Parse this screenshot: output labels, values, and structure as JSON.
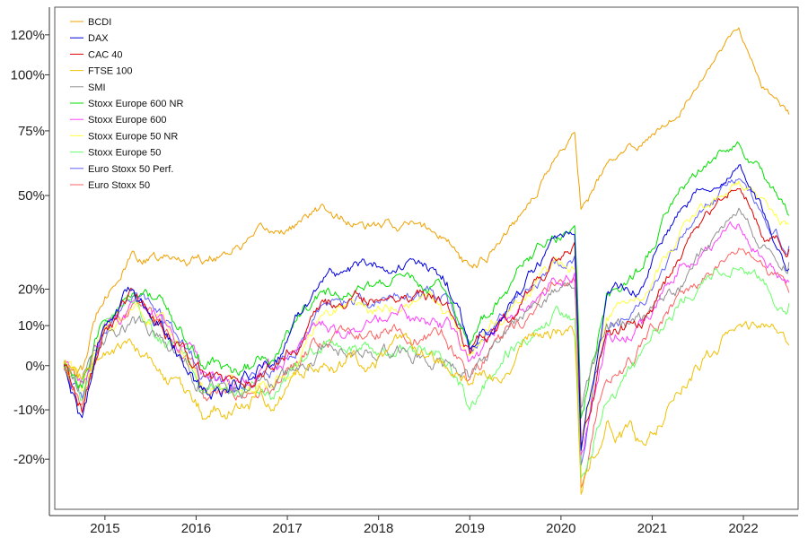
{
  "chart_data": {
    "type": "line",
    "title": "",
    "xlabel": "",
    "ylabel": "",
    "y_scale": "log(1+r)",
    "grid": false,
    "legend_position": "top-left",
    "xlim": [
      2014.45,
      2022.6
    ],
    "ylim": [
      -0.29,
      1.35
    ],
    "x_ticks": [
      {
        "value": 2015,
        "label": "2015"
      },
      {
        "value": 2016,
        "label": "2016"
      },
      {
        "value": 2017,
        "label": "2017"
      },
      {
        "value": 2018,
        "label": "2018"
      },
      {
        "value": 2019,
        "label": "2019"
      },
      {
        "value": 2020,
        "label": "2020"
      },
      {
        "value": 2021,
        "label": "2021"
      },
      {
        "value": 2022,
        "label": "2022"
      }
    ],
    "y_ticks": [
      {
        "value": -0.2,
        "label": "-20%"
      },
      {
        "value": -0.1,
        "label": "-10%"
      },
      {
        "value": 0.0,
        "label": "0%"
      },
      {
        "value": 0.1,
        "label": "10%"
      },
      {
        "value": 0.2,
        "label": "20%"
      },
      {
        "value": 0.5,
        "label": "50%"
      },
      {
        "value": 0.75,
        "label": "75%"
      },
      {
        "value": 1.0,
        "label": "100%"
      },
      {
        "value": 1.2,
        "label": "120%"
      }
    ],
    "x": [
      2014.55,
      2014.75,
      2015.0,
      2015.3,
      2015.6,
      2016.1,
      2016.5,
      2016.9,
      2017.4,
      2017.9,
      2018.3,
      2018.75,
      2019.0,
      2019.5,
      2019.9,
      2020.15,
      2020.22,
      2020.5,
      2020.9,
      2021.3,
      2021.6,
      2021.95,
      2022.2,
      2022.5
    ],
    "series": [
      {
        "name": "BCDI",
        "color": "#f0a000",
        "values": [
          0.0,
          -0.02,
          0.2,
          0.3,
          0.28,
          0.3,
          0.34,
          0.37,
          0.45,
          0.38,
          0.4,
          0.36,
          0.25,
          0.42,
          0.62,
          0.75,
          0.45,
          0.6,
          0.7,
          0.85,
          1.05,
          1.25,
          0.95,
          0.82
        ]
      },
      {
        "name": "DAX",
        "color": "#0000dd",
        "values": [
          0.0,
          -0.12,
          0.12,
          0.19,
          0.12,
          -0.07,
          -0.03,
          0.03,
          0.24,
          0.27,
          0.28,
          0.22,
          0.05,
          0.18,
          0.32,
          0.33,
          -0.22,
          0.18,
          0.21,
          0.45,
          0.55,
          0.62,
          0.45,
          0.26
        ]
      },
      {
        "name": "CAC 40",
        "color": "#e00000",
        "values": [
          0.0,
          -0.08,
          0.08,
          0.17,
          0.11,
          -0.04,
          -0.05,
          0.0,
          0.14,
          0.17,
          0.2,
          0.16,
          0.04,
          0.15,
          0.28,
          0.32,
          -0.18,
          0.07,
          0.1,
          0.3,
          0.42,
          0.55,
          0.4,
          0.32
        ]
      },
      {
        "name": "FTSE 100",
        "color": "#f0c000",
        "values": [
          0.0,
          -0.03,
          0.03,
          0.05,
          -0.02,
          -0.12,
          -0.08,
          -0.07,
          0.02,
          0.02,
          0.04,
          0.01,
          -0.06,
          0.04,
          0.08,
          0.07,
          -0.26,
          -0.12,
          -0.18,
          -0.02,
          0.03,
          0.1,
          0.08,
          0.05
        ]
      },
      {
        "name": "SMI",
        "color": "#909090",
        "values": [
          0.0,
          -0.04,
          0.05,
          0.1,
          0.06,
          -0.04,
          -0.05,
          -0.07,
          0.05,
          0.02,
          0.03,
          0.02,
          -0.02,
          0.12,
          0.2,
          0.22,
          -0.1,
          0.08,
          0.12,
          0.2,
          0.32,
          0.45,
          0.32,
          0.28
        ]
      },
      {
        "name": "Stoxx Europe 600 NR",
        "color": "#00e000",
        "values": [
          0.0,
          -0.06,
          0.12,
          0.19,
          0.15,
          0.0,
          -0.02,
          0.03,
          0.18,
          0.2,
          0.23,
          0.2,
          0.07,
          0.25,
          0.35,
          0.38,
          -0.13,
          0.19,
          0.27,
          0.5,
          0.62,
          0.7,
          0.58,
          0.43
        ]
      },
      {
        "name": "Stoxx Europe 600",
        "color": "#ff40ff",
        "values": [
          0.0,
          -0.07,
          0.09,
          0.15,
          0.11,
          -0.03,
          -0.05,
          -0.03,
          0.09,
          0.1,
          0.12,
          0.09,
          -0.02,
          0.12,
          0.21,
          0.24,
          -0.2,
          0.04,
          0.1,
          0.26,
          0.33,
          0.4,
          0.3,
          0.22
        ]
      },
      {
        "name": "Stoxx Europe 50 NR",
        "color": "#ffff40",
        "values": [
          0.0,
          -0.06,
          0.09,
          0.16,
          0.11,
          -0.02,
          -0.04,
          -0.02,
          0.12,
          0.14,
          0.17,
          0.14,
          0.02,
          0.17,
          0.26,
          0.28,
          -0.16,
          0.12,
          0.18,
          0.36,
          0.45,
          0.55,
          0.48,
          0.4
        ]
      },
      {
        "name": "Stoxx Europe 50",
        "color": "#66ff66",
        "values": [
          0.0,
          -0.07,
          0.07,
          0.13,
          0.08,
          -0.05,
          -0.06,
          -0.05,
          0.04,
          0.05,
          0.06,
          0.03,
          -0.08,
          0.05,
          0.12,
          0.13,
          -0.25,
          -0.04,
          0.0,
          0.16,
          0.23,
          0.3,
          0.22,
          0.16
        ]
      },
      {
        "name": "Euro Stoxx 50 Perf.",
        "color": "#6060ff",
        "values": [
          0.0,
          -0.07,
          0.11,
          0.18,
          0.12,
          -0.03,
          -0.05,
          0.0,
          0.15,
          0.16,
          0.2,
          0.17,
          0.04,
          0.18,
          0.28,
          0.31,
          -0.19,
          0.1,
          0.15,
          0.36,
          0.46,
          0.57,
          0.44,
          0.33
        ]
      },
      {
        "name": "Euro Stoxx 50",
        "color": "#ff6060",
        "values": [
          0.0,
          -0.08,
          0.09,
          0.15,
          0.09,
          -0.06,
          -0.08,
          -0.04,
          0.07,
          0.08,
          0.1,
          0.07,
          -0.04,
          0.09,
          0.18,
          0.2,
          -0.26,
          0.0,
          0.05,
          0.19,
          0.26,
          0.34,
          0.25,
          0.19
        ]
      }
    ]
  }
}
